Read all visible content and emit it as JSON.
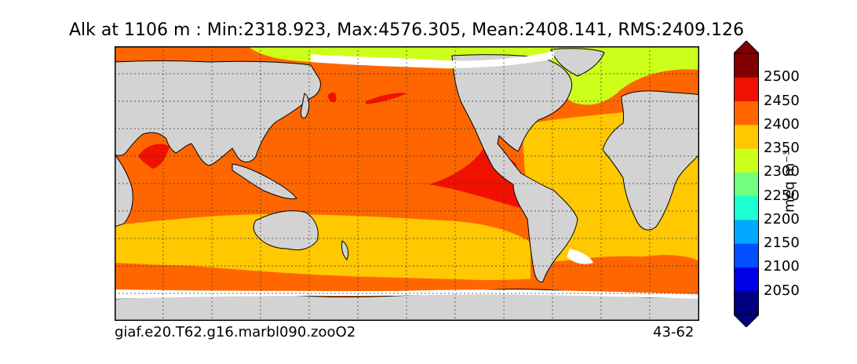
{
  "title": "Alk at 1106 m : Min:2318.923, Max:4576.305, Mean:2408.141, RMS:2409.126",
  "footer": {
    "case_name": "giaf.e20.T62.g16.marbl090.zooO2",
    "years": "43-62"
  },
  "colorbar": {
    "units": "meq m⁻³",
    "tick_labels": [
      "2500",
      "2450",
      "2400",
      "2350",
      "2300",
      "2250",
      "2200",
      "2150",
      "2100",
      "2050"
    ],
    "levels": [
      2000,
      2050,
      2100,
      2150,
      2200,
      2250,
      2300,
      2350,
      2400,
      2450,
      2500,
      2550
    ],
    "colors": [
      "#000080",
      "#0000e6",
      "#0050ff",
      "#00a8ff",
      "#1cffd0",
      "#70ff80",
      "#ccff1a",
      "#ffc800",
      "#ff6600",
      "#f01100",
      "#800000"
    ],
    "extend": "both"
  },
  "map_colors": {
    "land": "#d3d3d3",
    "no_data": "#ffffff",
    "band_2350": "#ffc800",
    "band_2400": "#ff6600",
    "band_2450": "#f01100",
    "band_2300": "#ccff1a",
    "band_2500": "#800000"
  }
}
